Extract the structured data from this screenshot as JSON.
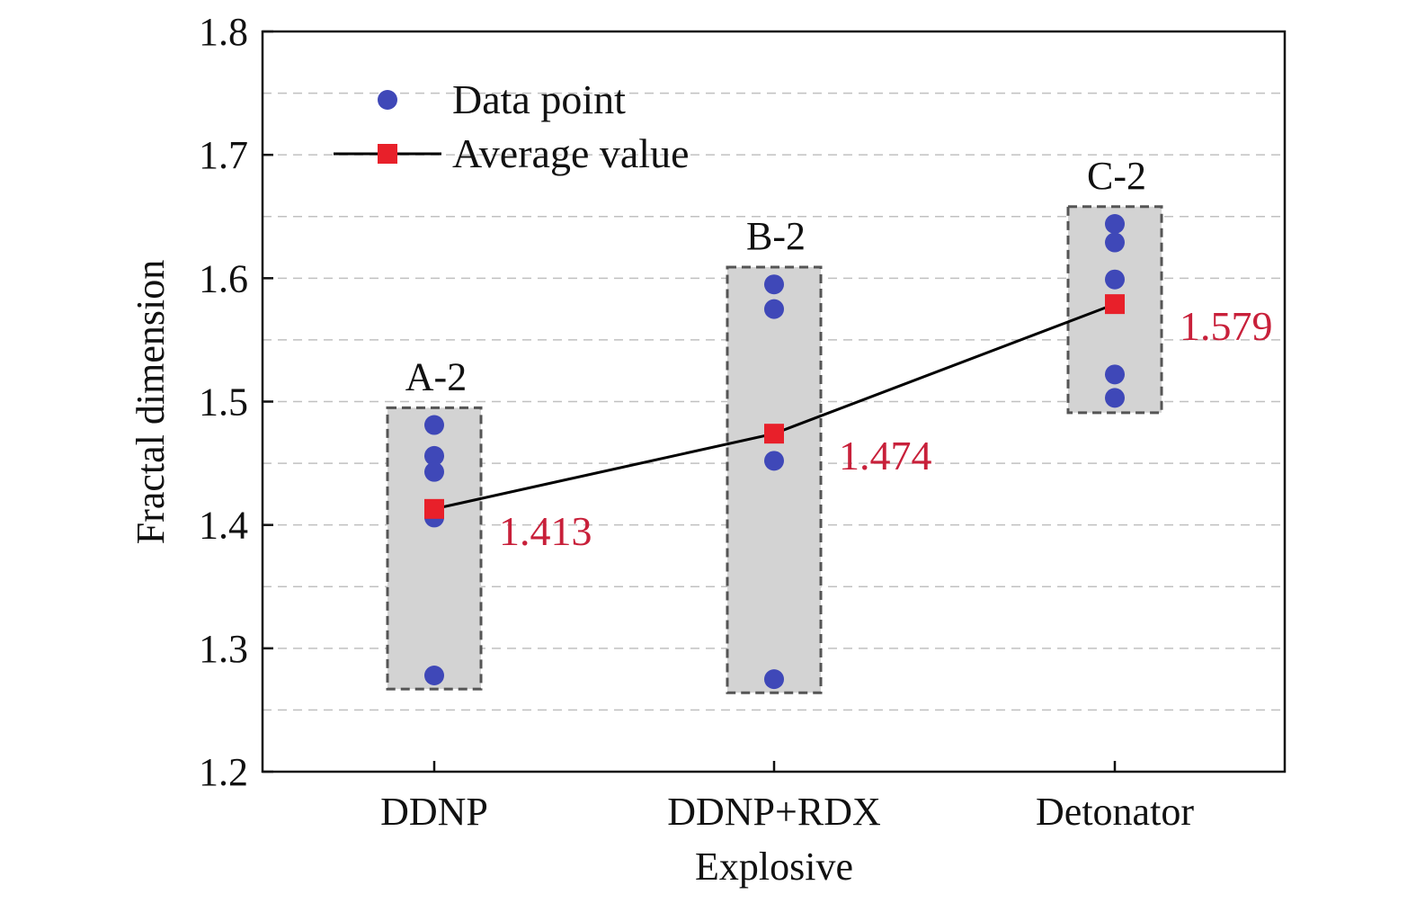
{
  "chart_data": {
    "type": "scatter",
    "xlabel": "Explosive",
    "ylabel": "Fractal dimension",
    "categories": [
      "DDNP",
      "DDNP+RDX",
      "Detonator"
    ],
    "ylim": [
      1.2,
      1.8
    ],
    "yticks": [
      "1.2",
      "1.3",
      "1.4",
      "1.5",
      "1.6",
      "1.7",
      "1.8"
    ],
    "grid": true,
    "legend_position": "top-left",
    "legend": {
      "data_point_label": "Data point",
      "average_label": "Average value"
    },
    "colors": {
      "data_point": "#3f48b8",
      "average": "#e8202a",
      "average_label": "#c8203a",
      "line": "#000000",
      "box_fill": "#d3d3d3",
      "box_border": "#555555",
      "grid": "#c0c0c0"
    },
    "groups": [
      {
        "category": "DDNP",
        "label": "A-2",
        "points": [
          1.481,
          1.456,
          1.443,
          1.406,
          1.278
        ],
        "box": [
          1.267,
          1.495
        ],
        "average": 1.413,
        "average_label": "1.413"
      },
      {
        "category": "DDNP+RDX",
        "label": "B-2",
        "points": [
          1.595,
          1.575,
          1.452,
          1.275
        ],
        "box": [
          1.264,
          1.609
        ],
        "average": 1.474,
        "average_label": "1.474"
      },
      {
        "category": "Detonator",
        "label": "C-2",
        "points": [
          1.644,
          1.629,
          1.599,
          1.522,
          1.503
        ],
        "box": [
          1.491,
          1.658
        ],
        "average": 1.579,
        "average_label": "1.579"
      }
    ]
  }
}
